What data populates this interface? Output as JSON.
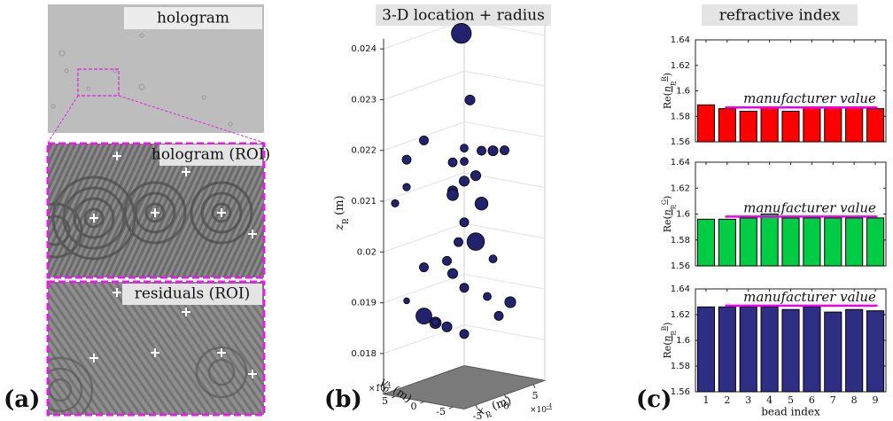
{
  "panel_labels": [
    "(a)",
    "(b)",
    "(c)"
  ],
  "panel_a": {
    "hologram_label": "hologram",
    "roi_labels": [
      "hologram (ROI)",
      "residuals (ROI)"
    ]
  },
  "chart_data": [
    {
      "type": "scatter3d",
      "title": "3-D location + radius",
      "zlabel": [
        "z",
        "p",
        " (m)"
      ],
      "ylabel": [
        "y",
        "p",
        " (m)"
      ],
      "xlabel": [
        "x",
        "p",
        " (m)"
      ],
      "scale_note": [
        "×10",
        "-4"
      ],
      "xlim": [
        -7,
        7
      ],
      "ylim": [
        -7,
        7
      ],
      "zlim": [
        0.0172,
        0.0242
      ],
      "xticks": [
        -5,
        0,
        5
      ],
      "yticks": [
        5,
        0,
        -5
      ],
      "zticks": [
        0.018,
        0.019,
        0.02,
        0.021,
        0.022,
        0.023,
        0.024
      ],
      "color": "#22226e",
      "x": [
        0.5,
        0,
        -3,
        1,
        2,
        3,
        4,
        -5,
        -6,
        -7,
        -1,
        0,
        1,
        -2,
        1,
        0,
        1,
        0,
        1,
        -1,
        -2,
        3,
        0,
        -3,
        1,
        2,
        -4,
        -3,
        -2,
        0,
        3,
        4,
        -5,
        -2
      ],
      "y": [
        1,
        -1,
        4,
        1,
        -1,
        -2,
        -3,
        5,
        4,
        5,
        1,
        0,
        -1,
        0,
        1,
        2,
        -2,
        0,
        -1,
        0,
        1,
        -2,
        2,
        4,
        1,
        -2,
        3,
        2,
        1,
        0,
        -3,
        -4,
        5,
        3
      ],
      "z": [
        0.02413,
        0.02288,
        0.0221,
        0.02185,
        0.0218,
        0.02178,
        0.02177,
        0.02178,
        0.0213,
        0.021,
        0.02165,
        0.02165,
        0.02135,
        0.02115,
        0.0212,
        0.02095,
        0.02082,
        0.02045,
        0.02005,
        0.0201,
        0.01975,
        0.01965,
        0.0194,
        0.0196,
        0.0191,
        0.01895,
        0.0187,
        0.01855,
        0.01845,
        0.01825,
        0.01855,
        0.0188,
        0.019,
        0.0185
      ],
      "sizes": [
        4,
        2,
        1.8,
        1.6,
        1.8,
        2,
        1.8,
        1.8,
        1.5,
        1.5,
        1.8,
        1.6,
        2,
        2,
        2,
        2.3,
        2.6,
        1.8,
        3.5,
        1.8,
        1.8,
        1.6,
        2,
        1.8,
        1.8,
        1.6,
        3.2,
        2.3,
        2,
        1.8,
        1.8,
        2.2,
        1.2,
        1.5
      ]
    },
    {
      "type": "bar",
      "title": "refractive index",
      "ylabel": [
        "Re(",
        "n",
        "p",
        "R",
        ")"
      ],
      "ylim": [
        1.56,
        1.64
      ],
      "yticks": [
        1.56,
        1.58,
        1.6,
        1.62,
        1.64
      ],
      "color": "#ff0000",
      "values": [
        1.589,
        1.586,
        1.584,
        1.587,
        1.584,
        1.587,
        1.587,
        1.587,
        1.586
      ],
      "reference": {
        "value": 1.587,
        "label": "manufacturer value",
        "color": "#ee00ee"
      }
    },
    {
      "type": "bar",
      "ylabel": [
        "Re(",
        "n",
        "p",
        "G",
        ")"
      ],
      "ylim": [
        1.56,
        1.64
      ],
      "yticks": [
        1.56,
        1.58,
        1.6,
        1.62,
        1.64
      ],
      "color": "#00cc44",
      "values": [
        1.596,
        1.596,
        1.597,
        1.6,
        1.597,
        1.597,
        1.597,
        1.597,
        1.597
      ],
      "reference": {
        "value": 1.598,
        "label": "manufacturer value",
        "color": "#ee00ee"
      }
    },
    {
      "type": "bar",
      "ylabel": [
        "Re(",
        "n",
        "p",
        "B",
        ")"
      ],
      "xlabel": "bead index",
      "categories": [
        "1",
        "2",
        "3",
        "4",
        "5",
        "6",
        "7",
        "8",
        "9"
      ],
      "ylim": [
        1.56,
        1.64
      ],
      "yticks": [
        1.56,
        1.58,
        1.6,
        1.62,
        1.64
      ],
      "color": "#2e2e85",
      "values": [
        1.626,
        1.626,
        1.626,
        1.626,
        1.624,
        1.626,
        1.622,
        1.624,
        1.623
      ],
      "reference": {
        "value": 1.627,
        "label": "manufacturer value",
        "color": "#ee00ee"
      }
    }
  ]
}
